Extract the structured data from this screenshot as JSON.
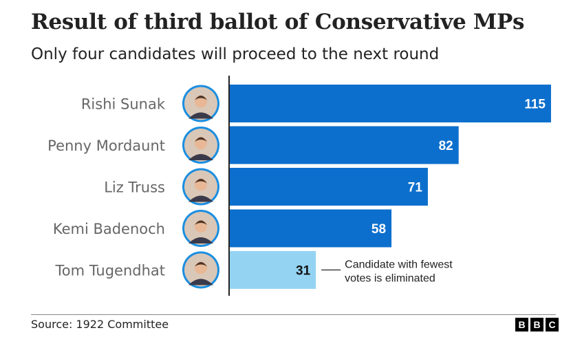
{
  "title": "Result of third ballot of Conservative MPs",
  "subtitle": "Only four candidates will proceed to the next round",
  "source": "Source: 1922 Committee",
  "logo": [
    "B",
    "B",
    "C"
  ],
  "colors": {
    "bar": "#0d6fcd",
    "bar_eliminated": "#94d4f2",
    "axis": "#222222",
    "label": "#666666",
    "photo_ring": "#1b8ee0"
  },
  "chart_data": {
    "type": "bar",
    "orientation": "horizontal",
    "categories": [
      "Rishi Sunak",
      "Penny Mordaunt",
      "Liz Truss",
      "Kemi Badenoch",
      "Tom Tugendhat"
    ],
    "values": [
      115,
      82,
      71,
      58,
      31
    ],
    "eliminated": [
      false,
      false,
      false,
      false,
      true
    ],
    "annotation": {
      "lines": [
        "Candidate with fewest",
        "votes is eliminated"
      ],
      "target": "Tom Tugendhat"
    },
    "xlim": [
      0,
      115
    ]
  }
}
